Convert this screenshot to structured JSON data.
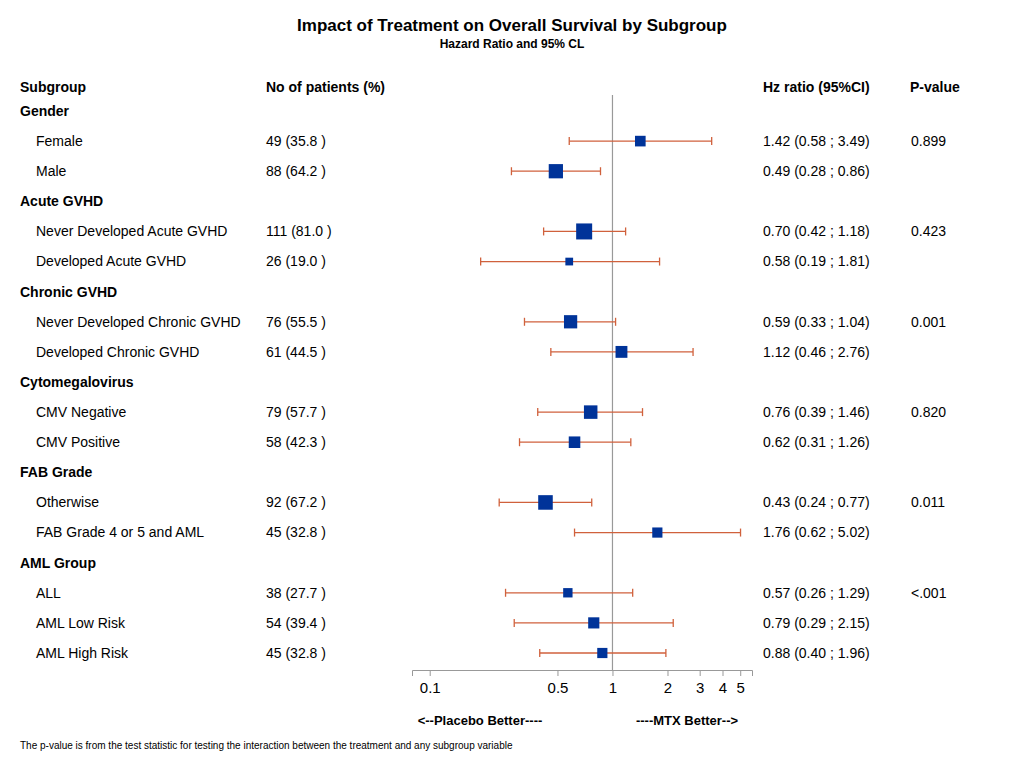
{
  "chart_data": {
    "type": "forest",
    "title": "Impact of Treatment on Overall Survival by Subgroup",
    "subtitle": "Hazard Ratio and 95% CL",
    "columns": [
      "Subgroup",
      "No of patients (%)",
      "Hz ratio (95%CI)",
      "P-value"
    ],
    "x_labels": [
      "<--Placebo Better----",
      "----MTX Better-->"
    ],
    "footnote": "The p-value is from the test statistic for testing the interaction between the treatment and any subgroup variable",
    "log": "x",
    "xlim": [
      0.08,
      5.8
    ],
    "xticks": [
      0.1,
      0.5,
      1,
      2,
      3,
      4,
      5
    ],
    "reference_line": 1,
    "color": "#003399",
    "groups": [
      {
        "name": "Gender",
        "p_value": "0.899",
        "rows": [
          {
            "label": "Female",
            "patients": "49 (35.8 )",
            "n": 49,
            "hr": 1.42,
            "lower": 0.58,
            "upper": 3.49,
            "hr_label": "1.42 (0.58 ; 3.49)"
          },
          {
            "label": "Male",
            "patients": "88 (64.2 )",
            "n": 88,
            "hr": 0.49,
            "lower": 0.28,
            "upper": 0.86,
            "hr_label": "0.49 (0.28 ; 0.86)"
          }
        ]
      },
      {
        "name": "Acute GVHD",
        "p_value": "0.423",
        "rows": [
          {
            "label": "Never Developed Acute GVHD",
            "patients": "111 (81.0 )",
            "n": 111,
            "hr": 0.7,
            "lower": 0.42,
            "upper": 1.18,
            "hr_label": "0.70 (0.42 ; 1.18)"
          },
          {
            "label": "Developed Acute GVHD",
            "patients": "26 (19.0 )",
            "n": 26,
            "hr": 0.58,
            "lower": 0.19,
            "upper": 1.81,
            "hr_label": "0.58 (0.19 ; 1.81)"
          }
        ]
      },
      {
        "name": "Chronic GVHD",
        "p_value": "0.001",
        "rows": [
          {
            "label": "Never Developed Chronic GVHD",
            "patients": "76 (55.5 )",
            "n": 76,
            "hr": 0.59,
            "lower": 0.33,
            "upper": 1.04,
            "hr_label": "0.59 (0.33 ; 1.04)"
          },
          {
            "label": "Developed Chronic GVHD",
            "patients": "61 (44.5 )",
            "n": 61,
            "hr": 1.12,
            "lower": 0.46,
            "upper": 2.76,
            "hr_label": "1.12 (0.46 ; 2.76)"
          }
        ]
      },
      {
        "name": "Cytomegalovirus",
        "p_value": "0.820",
        "rows": [
          {
            "label": "CMV Negative",
            "patients": "79 (57.7 )",
            "n": 79,
            "hr": 0.76,
            "lower": 0.39,
            "upper": 1.46,
            "hr_label": "0.76 (0.39 ; 1.46)"
          },
          {
            "label": "CMV Positive",
            "patients": "58 (42.3 )",
            "n": 58,
            "hr": 0.62,
            "lower": 0.31,
            "upper": 1.26,
            "hr_label": "0.62 (0.31 ; 1.26)"
          }
        ]
      },
      {
        "name": "FAB Grade",
        "p_value": "0.011",
        "rows": [
          {
            "label": "Otherwise",
            "patients": "92 (67.2 )",
            "n": 92,
            "hr": 0.43,
            "lower": 0.24,
            "upper": 0.77,
            "hr_label": "0.43 (0.24 ; 0.77)"
          },
          {
            "label": "FAB Grade 4 or 5 and AML",
            "patients": "45 (32.8 )",
            "n": 45,
            "hr": 1.76,
            "lower": 0.62,
            "upper": 5.02,
            "hr_label": "1.76 (0.62 ; 5.02)"
          }
        ]
      },
      {
        "name": "AML Group",
        "p_value": "<.001",
        "rows": [
          {
            "label": "ALL",
            "patients": "38 (27.7 )",
            "n": 38,
            "hr": 0.57,
            "lower": 0.26,
            "upper": 1.29,
            "hr_label": "0.57 (0.26 ; 1.29)"
          },
          {
            "label": "AML Low Risk",
            "patients": "54 (39.4 )",
            "n": 54,
            "hr": 0.79,
            "lower": 0.29,
            "upper": 2.15,
            "hr_label": "0.79 (0.29 ; 2.15)"
          },
          {
            "label": "AML High Risk",
            "patients": "45 (32.8 )",
            "n": 45,
            "hr": 0.88,
            "lower": 0.4,
            "upper": 1.96,
            "hr_label": "0.88 (0.40 ; 1.96)"
          }
        ]
      }
    ]
  }
}
